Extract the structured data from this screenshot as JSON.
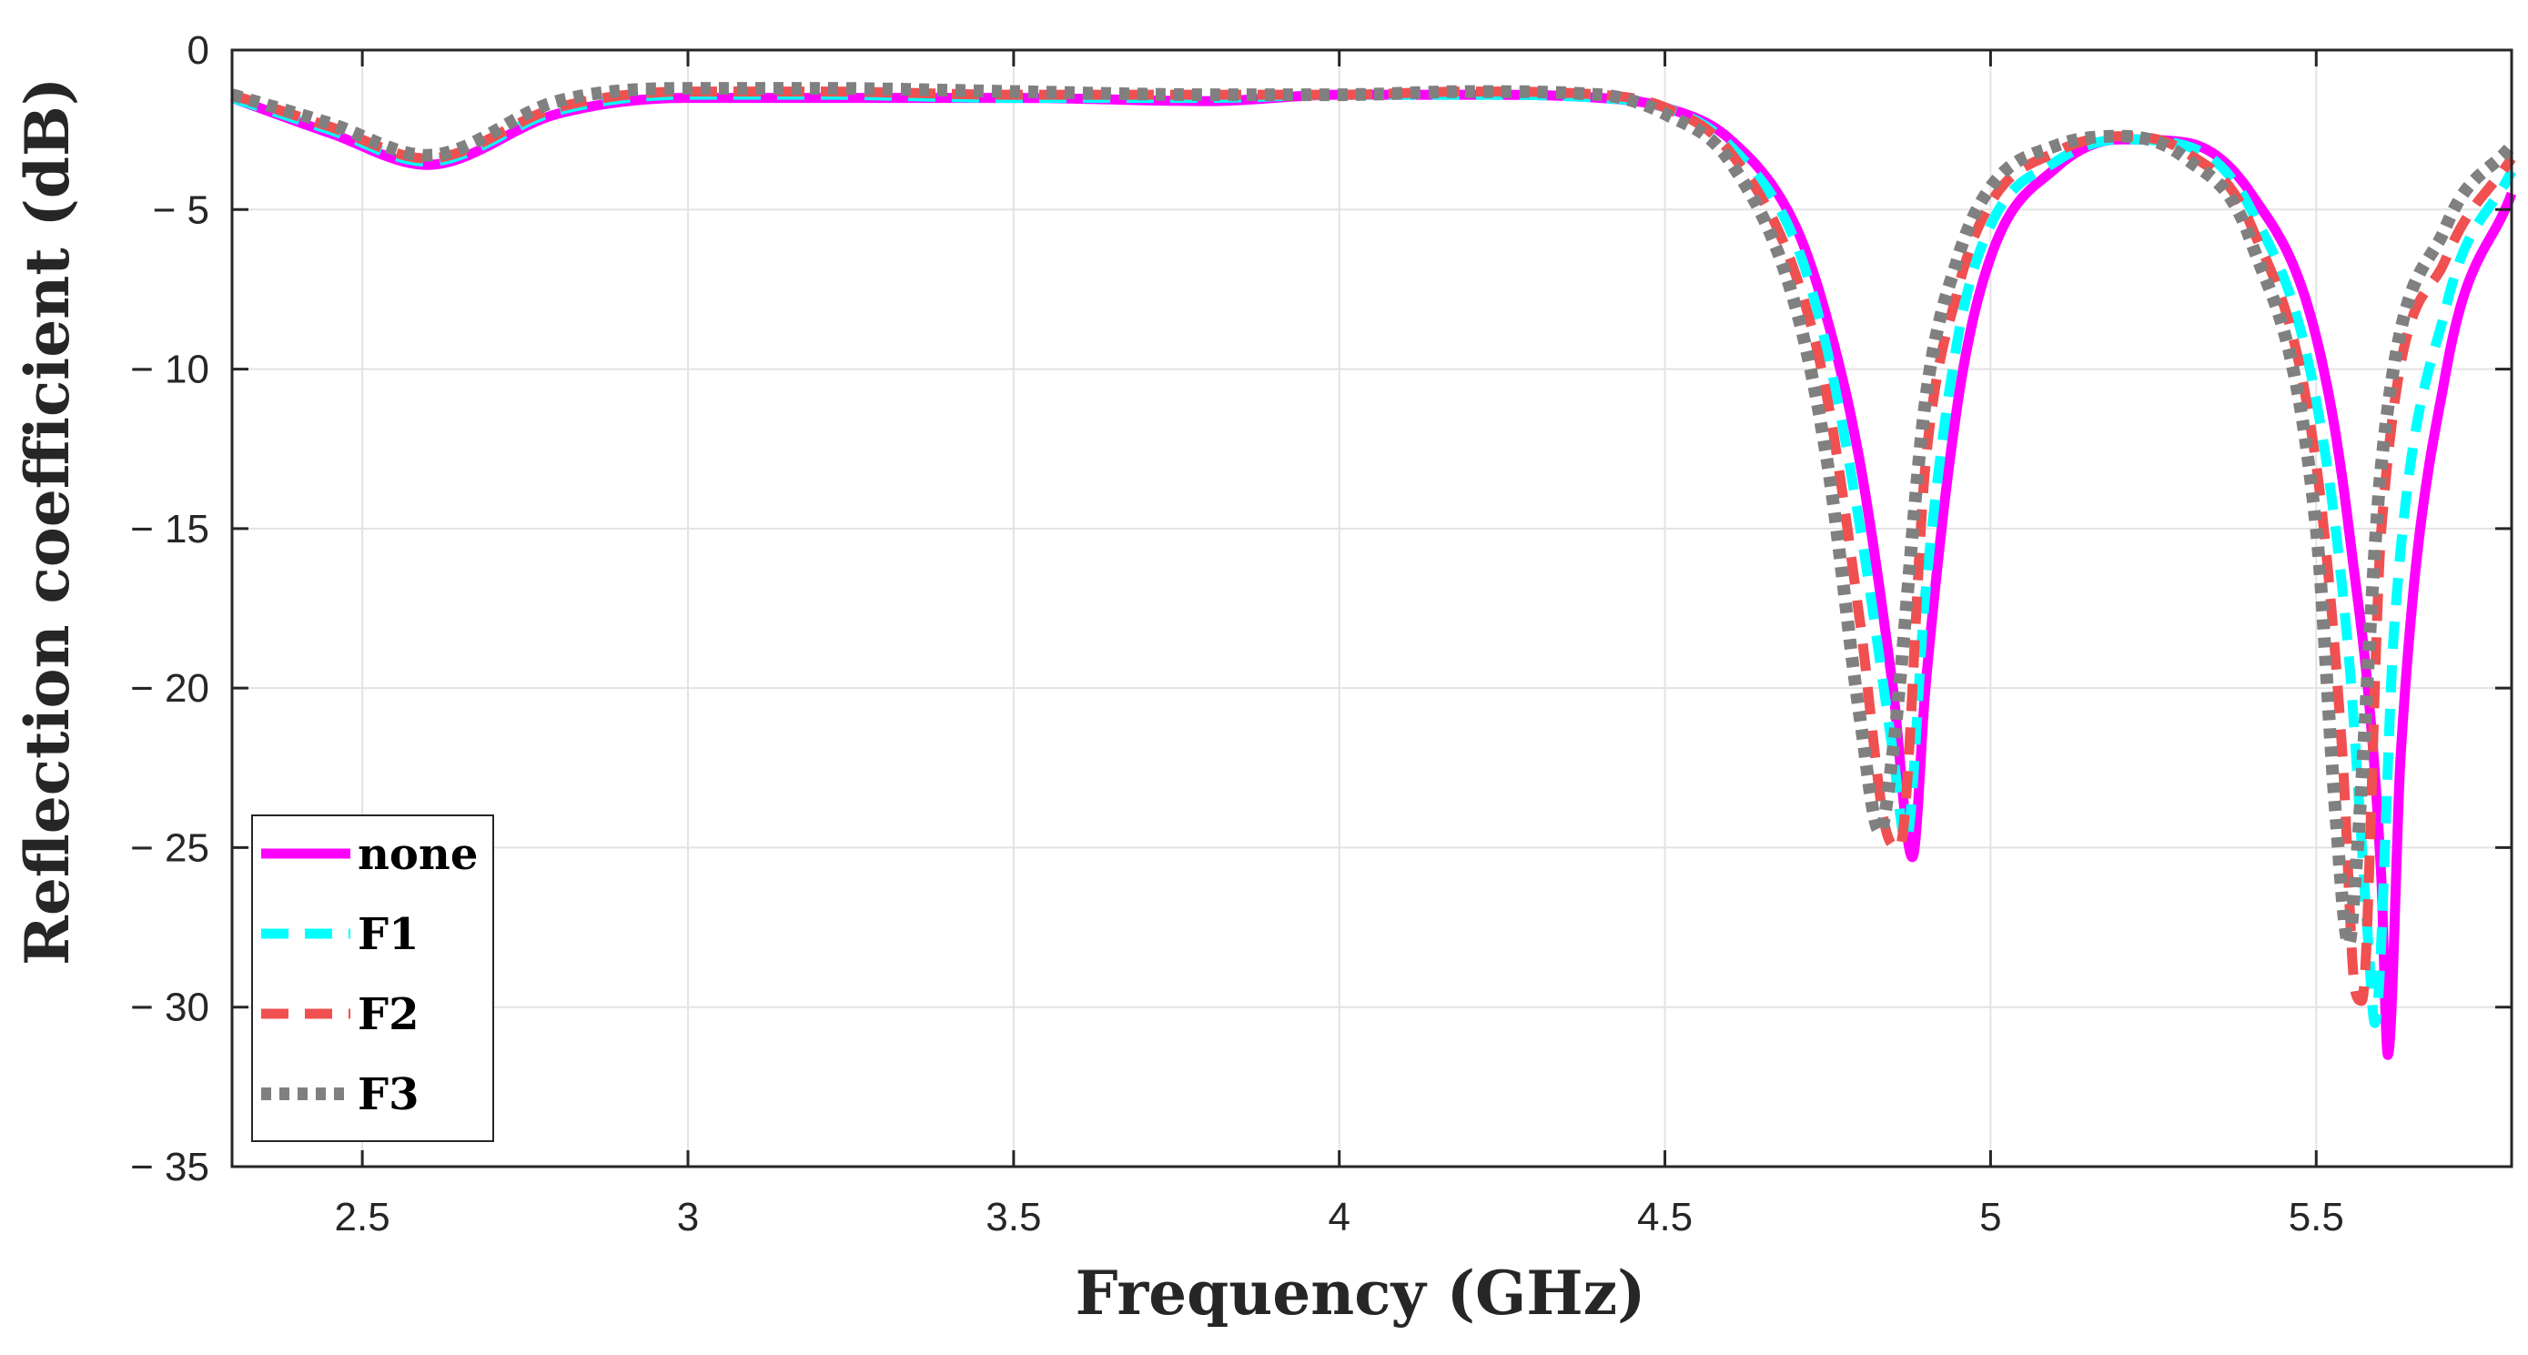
{
  "chart_data": {
    "type": "line",
    "title": "",
    "xlabel": "Frequency (GHz)",
    "ylabel": "Reflection coefficient (dB)",
    "xlim": [
      2.3,
      5.8
    ],
    "ylim": [
      -35,
      0
    ],
    "grid": true,
    "legend_position": "bottom-left",
    "x_ticks": [
      2.5,
      3,
      3.5,
      4,
      4.5,
      5,
      5.5
    ],
    "x_tick_labels": [
      "2.5",
      "3",
      "3.5",
      "4",
      "4.5",
      "5",
      "5.5"
    ],
    "y_ticks": [
      0,
      -5,
      -10,
      -15,
      -20,
      -25,
      -30,
      -35
    ],
    "y_tick_labels": [
      "0",
      "− 5",
      "− 10",
      "− 15",
      "− 20",
      "− 25",
      "− 30",
      "− 35"
    ],
    "series": [
      {
        "name": "none",
        "color": "#ff00ff",
        "style": "solid",
        "x": [
          2.3,
          2.45,
          2.6,
          2.8,
          3.0,
          3.2,
          3.5,
          3.8,
          4.0,
          4.2,
          4.4,
          4.5,
          4.6,
          4.7,
          4.75,
          4.8,
          4.85,
          4.88,
          4.9,
          4.95,
          5.0,
          5.1,
          5.2,
          5.3,
          5.4,
          5.5,
          5.55,
          5.6,
          5.61,
          5.63,
          5.7,
          5.8
        ],
        "y": [
          -1.5,
          -2.6,
          -3.6,
          -2.0,
          -1.5,
          -1.5,
          -1.5,
          -1.6,
          -1.4,
          -1.4,
          -1.5,
          -1.8,
          -2.8,
          -5.5,
          -8.5,
          -13.0,
          -20.0,
          -25.3,
          -20.0,
          -11.0,
          -6.5,
          -3.7,
          -2.8,
          -2.9,
          -4.5,
          -9.0,
          -15.0,
          -26.0,
          -31.5,
          -22.0,
          -10.0,
          -4.5
        ]
      },
      {
        "name": "F1",
        "color": "#00ffff",
        "style": "dashed",
        "x": [
          2.3,
          2.45,
          2.6,
          2.8,
          3.0,
          3.2,
          3.5,
          3.8,
          4.0,
          4.2,
          4.4,
          4.5,
          4.6,
          4.7,
          4.75,
          4.8,
          4.85,
          4.87,
          4.9,
          4.95,
          5.0,
          5.1,
          5.2,
          5.3,
          5.4,
          5.5,
          5.55,
          5.58,
          5.59,
          5.62,
          5.7,
          5.8
        ],
        "y": [
          -1.5,
          -2.5,
          -3.5,
          -1.9,
          -1.4,
          -1.4,
          -1.5,
          -1.5,
          -1.4,
          -1.4,
          -1.5,
          -1.8,
          -3.0,
          -6.0,
          -9.5,
          -15.0,
          -22.0,
          -24.8,
          -17.0,
          -9.0,
          -5.5,
          -3.5,
          -2.8,
          -3.0,
          -5.0,
          -11.0,
          -19.0,
          -28.0,
          -30.5,
          -18.0,
          -8.0,
          -3.8
        ]
      },
      {
        "name": "F2",
        "color": "#f05050",
        "style": "dashed",
        "x": [
          2.3,
          2.45,
          2.6,
          2.8,
          3.0,
          3.2,
          3.5,
          3.8,
          4.0,
          4.2,
          4.4,
          4.5,
          4.6,
          4.7,
          4.75,
          4.8,
          4.84,
          4.86,
          4.9,
          4.95,
          5.0,
          5.1,
          5.2,
          5.3,
          5.4,
          5.5,
          5.54,
          5.56,
          5.57,
          5.6,
          5.7,
          5.8
        ],
        "y": [
          -1.4,
          -2.4,
          -3.4,
          -1.8,
          -1.3,
          -1.3,
          -1.4,
          -1.4,
          -1.4,
          -1.3,
          -1.4,
          -1.8,
          -3.2,
          -7.0,
          -11.0,
          -18.0,
          -24.5,
          -25.0,
          -13.0,
          -7.5,
          -4.8,
          -3.2,
          -2.7,
          -3.2,
          -5.5,
          -13.0,
          -22.0,
          -29.5,
          -29.8,
          -15.0,
          -6.5,
          -3.4
        ]
      },
      {
        "name": "F3",
        "color": "#808080",
        "style": "dotted",
        "x": [
          2.3,
          2.45,
          2.6,
          2.8,
          3.0,
          3.2,
          3.5,
          3.8,
          4.0,
          4.2,
          4.4,
          4.5,
          4.6,
          4.7,
          4.75,
          4.8,
          4.83,
          4.85,
          4.9,
          4.95,
          5.0,
          5.1,
          5.2,
          5.3,
          5.4,
          5.5,
          5.53,
          5.55,
          5.56,
          5.6,
          5.7,
          5.8
        ],
        "y": [
          -1.4,
          -2.3,
          -3.3,
          -1.6,
          -1.2,
          -1.2,
          -1.3,
          -1.4,
          -1.4,
          -1.3,
          -1.4,
          -2.0,
          -3.5,
          -8.0,
          -13.0,
          -21.0,
          -24.5,
          -22.0,
          -11.0,
          -6.5,
          -4.3,
          -3.0,
          -2.7,
          -3.4,
          -6.0,
          -15.0,
          -24.0,
          -28.0,
          -26.0,
          -13.0,
          -5.5,
          -3.0
        ]
      }
    ]
  }
}
